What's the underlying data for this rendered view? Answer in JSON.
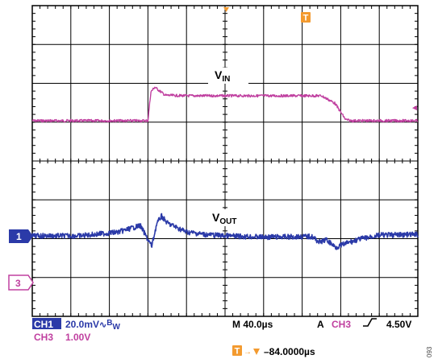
{
  "chart_data": {
    "type": "line",
    "x_unit": "µs",
    "x": [
      -72,
      -60,
      -48,
      -36,
      -24,
      -12,
      0,
      12,
      24,
      36,
      48,
      60,
      72,
      84,
      96,
      108,
      120,
      132,
      144,
      156,
      168,
      180,
      192,
      208
    ],
    "grid": true,
    "grid_divisions": {
      "horizontal": 10,
      "vertical": 8
    },
    "x_range_us": [
      -200,
      200
    ],
    "series": [
      {
        "name": "VIN",
        "label_main": "V",
        "label_sub": "IN",
        "channel": "3",
        "color": "#c040a0",
        "points": [
          [
            -200,
            0
          ],
          [
            -80,
            0
          ],
          [
            -77,
            1.15
          ],
          [
            -73,
            1.35
          ],
          [
            -68,
            1.2
          ],
          [
            -62,
            1.02
          ],
          [
            -40,
            1.0
          ],
          [
            0,
            1.0
          ],
          [
            80,
            1.0
          ],
          [
            100,
            1.0
          ],
          [
            114,
            0.7
          ],
          [
            125,
            0.05
          ],
          [
            130,
            0
          ],
          [
            200,
            0
          ]
        ]
      },
      {
        "name": "VOUT",
        "label_main": "V",
        "label_sub": "OUT",
        "channel": "1",
        "color": "#2b3aa8",
        "points": [
          [
            -200,
            0
          ],
          [
            -150,
            0
          ],
          [
            -110,
            0.3
          ],
          [
            -88,
            0.8
          ],
          [
            -80,
            -0.3
          ],
          [
            -76,
            -0.8
          ],
          [
            -71,
            0.9
          ],
          [
            -66,
            1.55
          ],
          [
            -60,
            1.0
          ],
          [
            -40,
            0.3
          ],
          [
            -20,
            0.1
          ],
          [
            0,
            0
          ],
          [
            40,
            -0.1
          ],
          [
            90,
            -0.05
          ],
          [
            98,
            -0.5
          ],
          [
            105,
            -0.3
          ],
          [
            115,
            -0.9
          ],
          [
            125,
            -0.6
          ],
          [
            140,
            -0.25
          ],
          [
            160,
            0.05
          ],
          [
            200,
            0.1
          ]
        ]
      }
    ]
  },
  "markers": {
    "trigger_top": "T",
    "ch1_marker": "1",
    "ch3_marker": "3",
    "ch3_arrow": "◄"
  },
  "readout": {
    "ch1_badge": "CH1",
    "ch1_scale": "20.0mV",
    "bw_symbol": "∿",
    "bw_b": "B",
    "bw_w": "W",
    "ch3_label": "CH3",
    "ch3_scale": "1.00V",
    "timebase": "M 40.0µs",
    "trig_a": "A",
    "trig_src": "CH3",
    "trig_slope": "⌠",
    "trig_level": "4.50V",
    "trig_marker": "T",
    "arrow": "→",
    "delay_marker": "▼",
    "delay": "–84.0000µs"
  },
  "figure_id": "093"
}
